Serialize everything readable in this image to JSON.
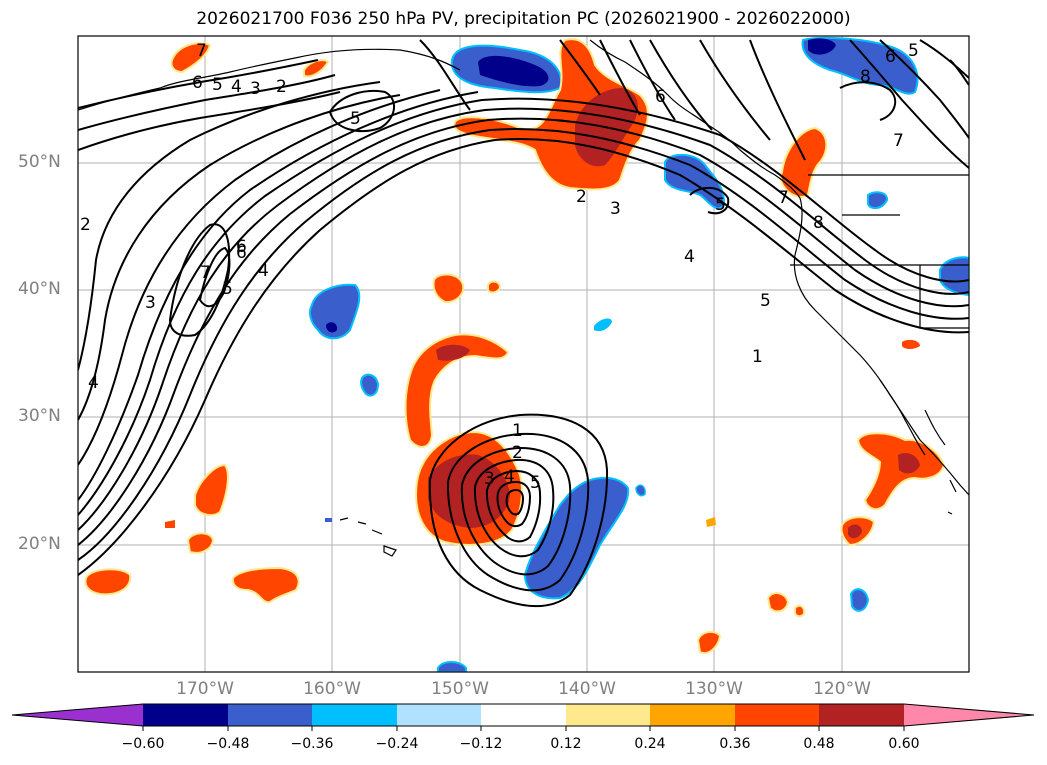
{
  "title": "2026021700 F036 250 hPa PV, precipitation PC (2026021900 - 2026022000)",
  "lat_labels": [
    "50°N",
    "40°N",
    "30°N",
    "20°N"
  ],
  "lon_labels": [
    "170°W",
    "160°W",
    "150°W",
    "140°W",
    "130°W",
    "120°W"
  ],
  "colorbar": {
    "ticks": [
      "−0.60",
      "−0.48",
      "−0.36",
      "−0.24",
      "−0.12",
      "0.12",
      "0.24",
      "0.36",
      "0.48",
      "0.60"
    ],
    "colors": [
      "#9b30d0",
      "#00008b",
      "#3a5fcd",
      "#00bfff",
      "#b0e2ff",
      "#ffffff",
      "#ffe98c",
      "#ffa500",
      "#ff4500",
      "#b22222",
      "#ff88aa"
    ]
  },
  "contour_labels": [
    "7",
    "6",
    "5",
    "4",
    "3",
    "2",
    "5",
    "6",
    "6",
    "5",
    "8",
    "7",
    "2",
    "3",
    "4",
    "5",
    "1",
    "8",
    "7",
    "6",
    "5",
    "4",
    "3",
    "4",
    "2",
    "1",
    "2",
    "3",
    "4",
    "5",
    "5",
    "6",
    "7"
  ]
}
